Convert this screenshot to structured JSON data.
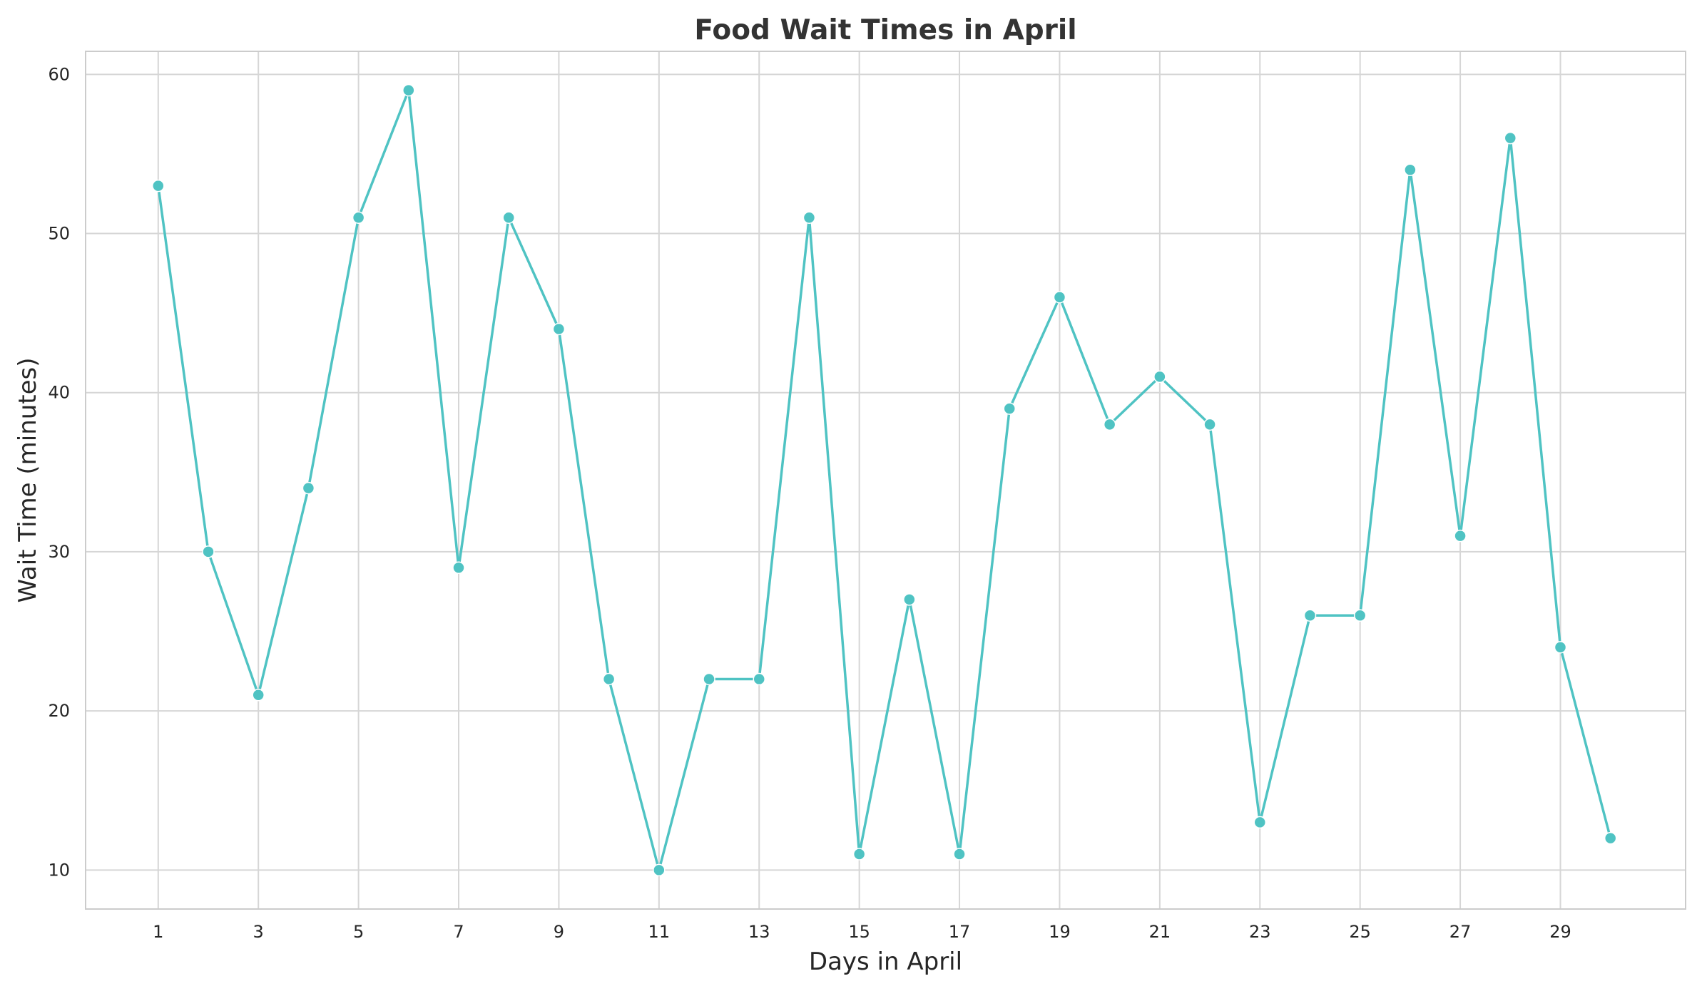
{
  "chart_data": {
    "type": "line",
    "title": "Food Wait Times in April",
    "xlabel": "Days in April",
    "ylabel": "Wait Time (minutes)",
    "x": [
      1,
      2,
      3,
      4,
      5,
      6,
      7,
      8,
      9,
      10,
      11,
      12,
      13,
      14,
      15,
      16,
      17,
      18,
      19,
      20,
      21,
      22,
      23,
      24,
      25,
      26,
      27,
      28,
      29,
      30
    ],
    "series": [
      {
        "values": [
          53,
          30,
          21,
          34,
          51,
          59,
          29,
          51,
          44,
          22,
          10,
          22,
          22,
          51,
          11,
          27,
          11,
          39,
          46,
          38,
          41,
          38,
          13,
          26,
          26,
          54,
          31,
          56,
          24,
          12
        ],
        "color": "#4fc3c3"
      }
    ],
    "xticks": [
      1,
      3,
      5,
      7,
      9,
      11,
      13,
      15,
      17,
      19,
      21,
      23,
      25,
      27,
      29
    ],
    "yticks": [
      10,
      20,
      30,
      40,
      50,
      60
    ],
    "xlim": [
      -0.45,
      31.5
    ],
    "ylim": [
      7.55,
      61.45
    ],
    "grid": true,
    "legend": false
  }
}
